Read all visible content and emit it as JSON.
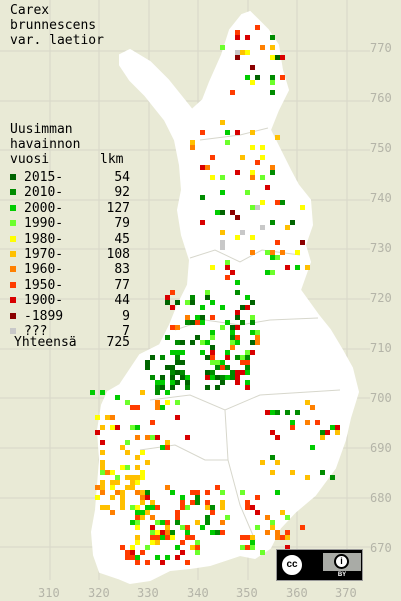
{
  "title_lines": [
    "Carex",
    "brunnescens",
    "var. laetior"
  ],
  "legend_heading": [
    "Uusimman",
    "havainnon",
    "vuosi"
  ],
  "legend_count_header": "lkm",
  "legend": [
    {
      "label": "2015-",
      "count": "54",
      "color": "#006400"
    },
    {
      "label": "2010-",
      "count": "92",
      "color": "#008c00"
    },
    {
      "label": "2000-",
      "count": "127",
      "color": "#00cc00"
    },
    {
      "label": "1990-",
      "count": "79",
      "color": "#6cff2c"
    },
    {
      "label": "1980-",
      "count": "45",
      "color": "#ffff00"
    },
    {
      "label": "1970-",
      "count": "108",
      "color": "#ffc000"
    },
    {
      "label": "1960-",
      "count": "83",
      "color": "#ff8000"
    },
    {
      "label": "1950-",
      "count": "77",
      "color": "#ff3c00"
    },
    {
      "label": "1900-",
      "count": "44",
      "color": "#d80000"
    },
    {
      "label": "-1899",
      "count": "9",
      "color": "#8b0000"
    },
    {
      "label": "???",
      "count": "7",
      "color": "#c8c8c8"
    }
  ],
  "total_label": "Yhteensä",
  "total_count": "725",
  "y_axis_ticks": [
    "770",
    "760",
    "750",
    "740",
    "730",
    "720",
    "710",
    "700",
    "690",
    "680",
    "670"
  ],
  "x_axis_ticks": [
    "310",
    "320",
    "330",
    "340",
    "350",
    "360",
    "370"
  ],
  "license_badge": {
    "cc": "cc",
    "by": "BY"
  },
  "colors": {
    "background": "#e9ead6",
    "land": "#ffffff",
    "grid": "#c8c8bc",
    "tick_text": "#b4b4a8"
  }
}
